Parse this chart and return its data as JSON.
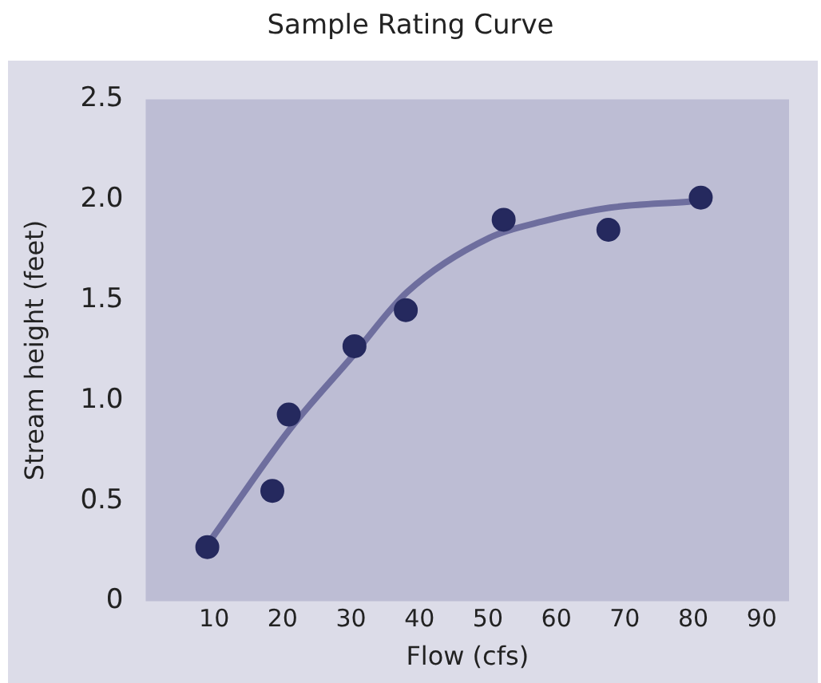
{
  "chart_data": {
    "type": "scatter",
    "title": "Sample Rating Curve",
    "xlabel": "Flow (cfs)",
    "ylabel": "Stream height (feet)",
    "xlim": [
      0,
      94
    ],
    "xticks": [
      10,
      20,
      30,
      40,
      50,
      60,
      70,
      80,
      90
    ],
    "ylim": [
      0,
      2.5
    ],
    "yticks": [
      0,
      0.5,
      {
        "value": 1,
        "label": "1.0"
      },
      1.5,
      {
        "value": 2,
        "label": "2.0"
      },
      2.5
    ],
    "grid": false,
    "legend": false,
    "marker": "circle",
    "series": [
      {
        "color": "#25295e",
        "x": [
          9.0,
          18.5,
          20.9,
          30.5,
          38.0,
          52.3,
          67.6,
          81.1
        ],
        "values": [
          0.27,
          0.55,
          0.93,
          1.27,
          1.45,
          1.9,
          1.85,
          2.01
        ]
      },
      {
        "type": "line",
        "color": "#6e6e9e",
        "marker": "none",
        "line_style": "solid",
        "x": [
          9.8,
          20.9,
          30.2,
          38.2,
          50.2,
          57.8,
          67.8,
          79.4
        ],
        "values": [
          0.32,
          0.85,
          1.22,
          1.54,
          1.81,
          1.89,
          1.96,
          1.99
        ]
      }
    ]
  }
}
